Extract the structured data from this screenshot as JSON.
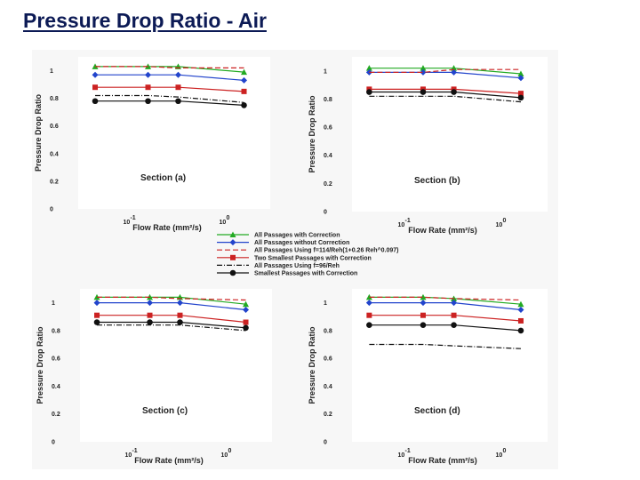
{
  "title": "Pressure Drop Ratio - Air",
  "legend": [
    {
      "label": "All Passages with Correction",
      "color": "#22aa22",
      "dash": "",
      "marker": "triangle"
    },
    {
      "label": "All Passages without Correction",
      "color": "#2244cc",
      "dash": "",
      "marker": "diamond"
    },
    {
      "label": "All Passages Using f=114/Reh(1+0.26 Reh^0.097)",
      "color": "#cc2222",
      "dash": "6,3",
      "marker": "none"
    },
    {
      "label": "Two Smallest Passages with Correction",
      "color": "#cc2222",
      "dash": "",
      "marker": "square"
    },
    {
      "label": "All Passages Using f=96/Reh",
      "color": "#111111",
      "dash": "6,2,1,2",
      "marker": "none"
    },
    {
      "label": "Smallest Passages with Correction",
      "color": "#111111",
      "dash": "",
      "marker": "circle"
    }
  ],
  "chart_data": [
    {
      "type": "line",
      "section": "Section (a)",
      "xlabel": "Flow Rate (mm²/s)",
      "ylabel": "Pressure Drop Ratio",
      "xscale": "log",
      "xlim": [
        0.03,
        3
      ],
      "ylim": [
        0,
        1.1
      ],
      "yticks": [
        "0",
        "0.2",
        "0.4",
        "0.6",
        "0.8",
        "1"
      ],
      "xticks": [
        {
          "base": "10",
          "exp": "-1",
          "value": 0.1
        },
        {
          "base": "10",
          "exp": "0",
          "value": 1
        }
      ],
      "series": [
        {
          "name": "All Passages with Correction",
          "x": [
            0.045,
            0.16,
            0.33,
            1.6
          ],
          "y": [
            1.03,
            1.03,
            1.03,
            0.99
          ]
        },
        {
          "name": "All Passages without Correction",
          "x": [
            0.045,
            0.16,
            0.33,
            1.6
          ],
          "y": [
            0.97,
            0.97,
            0.97,
            0.93
          ]
        },
        {
          "name": "All Passages Using f=114/Reh(1+0.26 Reh^0.097)",
          "x": [
            0.045,
            0.16,
            0.33,
            1.6
          ],
          "y": [
            1.03,
            1.03,
            1.02,
            1.02
          ]
        },
        {
          "name": "Two Smallest Passages with Correction",
          "x": [
            0.045,
            0.16,
            0.33,
            1.6
          ],
          "y": [
            0.88,
            0.88,
            0.88,
            0.85
          ]
        },
        {
          "name": "All Passages Using f=96/Reh",
          "x": [
            0.045,
            0.16,
            0.33,
            1.6
          ],
          "y": [
            0.82,
            0.82,
            0.81,
            0.77
          ]
        },
        {
          "name": "Smallest Passages with Correction",
          "x": [
            0.045,
            0.16,
            0.33,
            1.6
          ],
          "y": [
            0.78,
            0.78,
            0.78,
            0.75
          ]
        }
      ]
    },
    {
      "type": "line",
      "section": "Section (b)",
      "xlabel": "Flow Rate (mm²/s)",
      "ylabel": "Pressure Drop Ratio",
      "xscale": "log",
      "xlim": [
        0.03,
        3
      ],
      "ylim": [
        0,
        1.1
      ],
      "yticks": [
        "0",
        "0.2",
        "0.4",
        "0.6",
        "0.8",
        "1"
      ],
      "xticks": [
        {
          "base": "10",
          "exp": "-1",
          "value": 0.1
        },
        {
          "base": "10",
          "exp": "0",
          "value": 1
        }
      ],
      "series": [
        {
          "name": "All Passages with Correction",
          "x": [
            0.045,
            0.16,
            0.33,
            1.6
          ],
          "y": [
            1.02,
            1.02,
            1.02,
            0.98
          ]
        },
        {
          "name": "All Passages without Correction",
          "x": [
            0.045,
            0.16,
            0.33,
            1.6
          ],
          "y": [
            0.99,
            0.99,
            0.99,
            0.95
          ]
        },
        {
          "name": "All Passages Using f=114/Reh(1+0.26 Reh^0.097)",
          "x": [
            0.045,
            0.16,
            0.33,
            1.6
          ],
          "y": [
            0.99,
            0.99,
            1.01,
            1.01
          ]
        },
        {
          "name": "Two Smallest Passages with Correction",
          "x": [
            0.045,
            0.16,
            0.33,
            1.6
          ],
          "y": [
            0.87,
            0.87,
            0.87,
            0.84
          ]
        },
        {
          "name": "All Passages Using f=96/Reh",
          "x": [
            0.045,
            0.16,
            0.33,
            1.6
          ],
          "y": [
            0.82,
            0.82,
            0.82,
            0.78
          ]
        },
        {
          "name": "Smallest Passages with Correction",
          "x": [
            0.045,
            0.16,
            0.33,
            1.6
          ],
          "y": [
            0.85,
            0.85,
            0.85,
            0.81
          ]
        }
      ]
    },
    {
      "type": "line",
      "section": "Section (c)",
      "xlabel": "Flow Rate (mm²/s)",
      "ylabel": "Pressure Drop Ratio",
      "xscale": "log",
      "xlim": [
        0.03,
        3
      ],
      "ylim": [
        0,
        1.1
      ],
      "yticks": [
        "0",
        "0.2",
        "0.4",
        "0.6",
        "0.8",
        "1"
      ],
      "xticks": [
        {
          "base": "10",
          "exp": "-1",
          "value": 0.1
        },
        {
          "base": "10",
          "exp": "0",
          "value": 1
        }
      ],
      "series": [
        {
          "name": "All Passages with Correction",
          "x": [
            0.045,
            0.16,
            0.33,
            1.6
          ],
          "y": [
            1.04,
            1.04,
            1.04,
            0.99
          ]
        },
        {
          "name": "All Passages without Correction",
          "x": [
            0.045,
            0.16,
            0.33,
            1.6
          ],
          "y": [
            1.0,
            1.0,
            1.0,
            0.95
          ]
        },
        {
          "name": "All Passages Using f=114/Reh(1+0.26 Reh^0.097)",
          "x": [
            0.045,
            0.16,
            0.33,
            1.6
          ],
          "y": [
            1.04,
            1.04,
            1.03,
            1.02
          ]
        },
        {
          "name": "Two Smallest Passages with Correction",
          "x": [
            0.045,
            0.16,
            0.33,
            1.6
          ],
          "y": [
            0.91,
            0.91,
            0.91,
            0.86
          ]
        },
        {
          "name": "All Passages Using f=96/Reh",
          "x": [
            0.045,
            0.16,
            0.33,
            1.6
          ],
          "y": [
            0.84,
            0.84,
            0.84,
            0.8
          ]
        },
        {
          "name": "Smallest Passages with Correction",
          "x": [
            0.045,
            0.16,
            0.33,
            1.6
          ],
          "y": [
            0.86,
            0.86,
            0.86,
            0.82
          ]
        }
      ]
    },
    {
      "type": "line",
      "section": "Section (d)",
      "xlabel": "Flow Rate (mm²/s)",
      "ylabel": "Pressure Drop Ratio",
      "xscale": "log",
      "xlim": [
        0.03,
        3
      ],
      "ylim": [
        0,
        1.1
      ],
      "yticks": [
        "0",
        "0.2",
        "0.4",
        "0.6",
        "0.8",
        "1"
      ],
      "xticks": [
        {
          "base": "10",
          "exp": "-1",
          "value": 0.1
        },
        {
          "base": "10",
          "exp": "0",
          "value": 1
        }
      ],
      "series": [
        {
          "name": "All Passages with Correction",
          "x": [
            0.045,
            0.16,
            0.33,
            1.6
          ],
          "y": [
            1.04,
            1.04,
            1.03,
            0.99
          ]
        },
        {
          "name": "All Passages without Correction",
          "x": [
            0.045,
            0.16,
            0.33,
            1.6
          ],
          "y": [
            1.0,
            1.0,
            1.0,
            0.95
          ]
        },
        {
          "name": "All Passages Using f=114/Reh(1+0.26 Reh^0.097)",
          "x": [
            0.045,
            0.16,
            0.33,
            1.6
          ],
          "y": [
            1.04,
            1.04,
            1.03,
            1.02
          ]
        },
        {
          "name": "Two Smallest Passages with Correction",
          "x": [
            0.045,
            0.16,
            0.33,
            1.6
          ],
          "y": [
            0.91,
            0.91,
            0.91,
            0.87
          ]
        },
        {
          "name": "All Passages Using f=96/Reh",
          "x": [
            0.045,
            0.16,
            0.33,
            1.6
          ],
          "y": [
            0.7,
            0.7,
            0.69,
            0.67
          ]
        },
        {
          "name": "Smallest Passages with Correction",
          "x": [
            0.045,
            0.16,
            0.33,
            1.6
          ],
          "y": [
            0.84,
            0.84,
            0.84,
            0.8
          ]
        }
      ]
    }
  ]
}
